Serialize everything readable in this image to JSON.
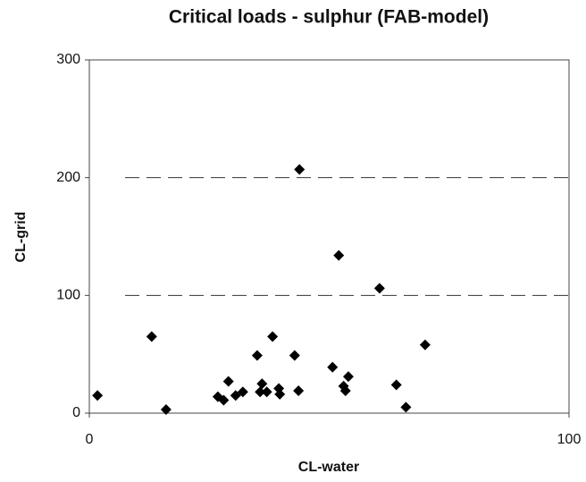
{
  "chart_data": {
    "type": "scatter",
    "title": "Critical loads - sulphur (FAB-model)",
    "x_label": "CL-water",
    "y_label": "CL-grid",
    "x": [
      1.7,
      13,
      16,
      26.8,
      28,
      29,
      30.5,
      32,
      35,
      36,
      35.6,
      37,
      38.2,
      39.5,
      39.7,
      42.8,
      43.6,
      43.8,
      50.7,
      53,
      53.4,
      52,
      54,
      60.5,
      64,
      66,
      70
    ],
    "y": [
      15,
      65,
      3,
      14,
      11,
      27,
      15,
      18,
      49,
      25,
      18,
      18,
      65,
      21,
      16,
      49,
      19,
      207,
      39,
      23,
      19,
      134,
      31,
      106,
      24,
      5,
      58
    ],
    "color": "#000000",
    "xlim": [
      0,
      100
    ],
    "xticks": [
      0,
      100
    ],
    "ylim": [
      0,
      300
    ],
    "yticks": [
      0,
      100,
      200,
      300
    ],
    "grid": true
  }
}
